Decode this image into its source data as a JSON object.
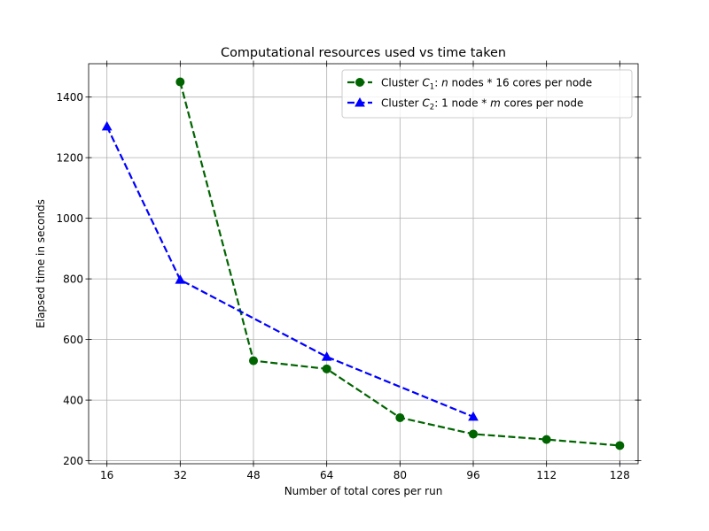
{
  "chart_data": {
    "type": "line",
    "title": "Computational resources used vs time taken",
    "xlabel": "Number of total cores per run",
    "ylabel": "Elapsed time in seconds",
    "xlim": [
      12,
      132
    ],
    "ylim": [
      190,
      1510
    ],
    "xticks": [
      16,
      32,
      48,
      64,
      80,
      96,
      112,
      128
    ],
    "yticks": [
      200,
      400,
      600,
      800,
      1000,
      1200,
      1400
    ],
    "grid": true,
    "legend_position": "top-right",
    "series": [
      {
        "name": "Cluster C1: n nodes * 16 cores per node",
        "legend_prefix": "Cluster ",
        "legend_symbol": "C",
        "legend_subscript": "1",
        "legend_mid": ": ",
        "legend_var": "n",
        "legend_suffix": " nodes * 16 cores per node",
        "color": "#006400",
        "marker": "circle",
        "linestyle": "dashed",
        "x": [
          32,
          48,
          64,
          80,
          96,
          112,
          128
        ],
        "y": [
          1450,
          530,
          503,
          342,
          288,
          270,
          250
        ]
      },
      {
        "name": "Cluster C2: 1 node * m cores per node",
        "legend_prefix": "Cluster ",
        "legend_symbol": "C",
        "legend_subscript": "2",
        "legend_mid": ": 1 node * ",
        "legend_var": "m",
        "legend_suffix": " cores per node",
        "color": "#0000ff",
        "marker": "triangle",
        "linestyle": "dashed",
        "x": [
          16,
          32,
          64,
          96
        ],
        "y": [
          1303,
          797,
          543,
          345
        ]
      }
    ]
  }
}
